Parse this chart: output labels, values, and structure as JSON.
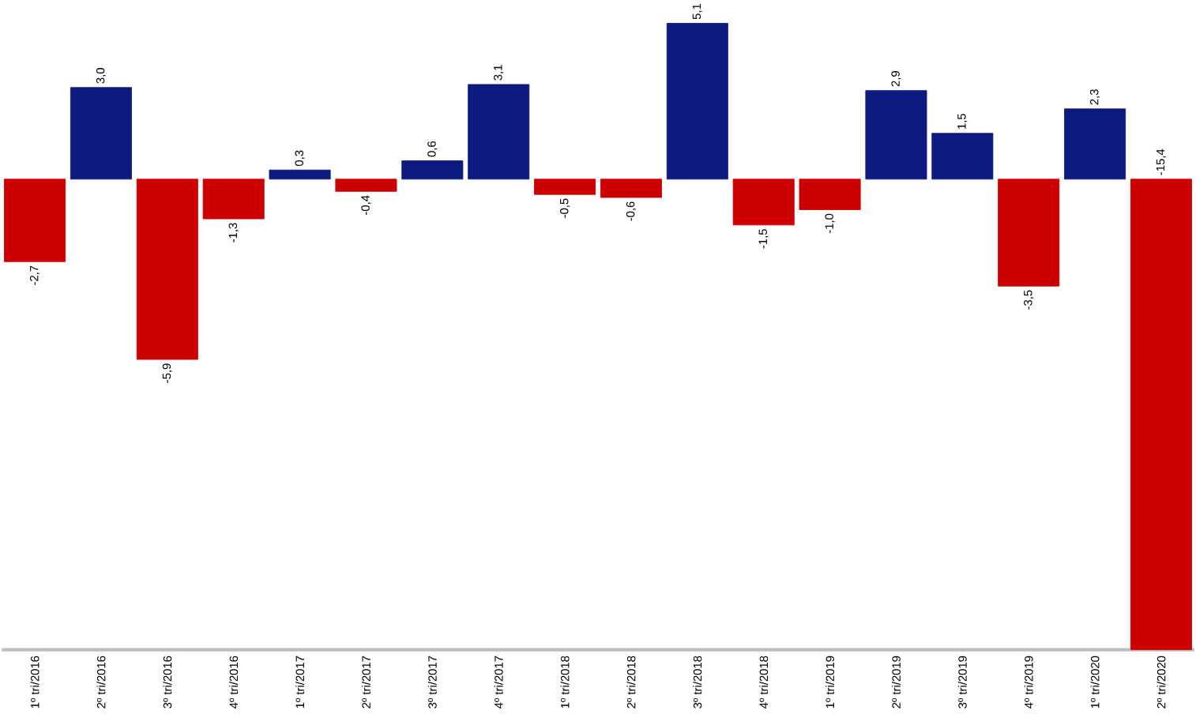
{
  "chart_data": {
    "type": "bar",
    "categories": [
      "1º tri/2016",
      "2º tri/2016",
      "3º tri/2016",
      "4º tri/2016",
      "1º tri/2017",
      "2º tri/2017",
      "3º tri/2017",
      "4º tri/2017",
      "1º tri/2018",
      "2º tri/2018",
      "3º tri/2018",
      "4º tri/2018",
      "1º tri/2019",
      "2º tri/2019",
      "3º tri/2019",
      "4º tri/2019",
      "1º tri/2020",
      "2º tri/2020"
    ],
    "values": [
      -2.7,
      3.0,
      -5.9,
      -1.3,
      0.3,
      -0.4,
      0.6,
      3.1,
      -0.5,
      -0.6,
      5.1,
      -1.5,
      -1.0,
      2.9,
      1.5,
      -3.5,
      2.3,
      -15.4
    ],
    "value_labels": [
      "-2,7",
      "3,0",
      "-5,9",
      "-1,3",
      "0,3",
      "-0,4",
      "0,6",
      "3,1",
      "-0,5",
      "-0,6",
      "5,1",
      "-1,5",
      "-1,0",
      "2,9",
      "1,5",
      "-3,5",
      "2,3",
      "-15,4"
    ],
    "colors": [
      "#cc0000",
      "#0d1a80",
      "#cc0000",
      "#cc0000",
      "#0d1a80",
      "#cc0000",
      "#0d1a80",
      "#0d1a80",
      "#cc0000",
      "#cc0000",
      "#0d1a80",
      "#cc0000",
      "#cc0000",
      "#0d1a80",
      "#0d1a80",
      "#cc0000",
      "#0d1a80",
      "#cc0000"
    ]
  }
}
